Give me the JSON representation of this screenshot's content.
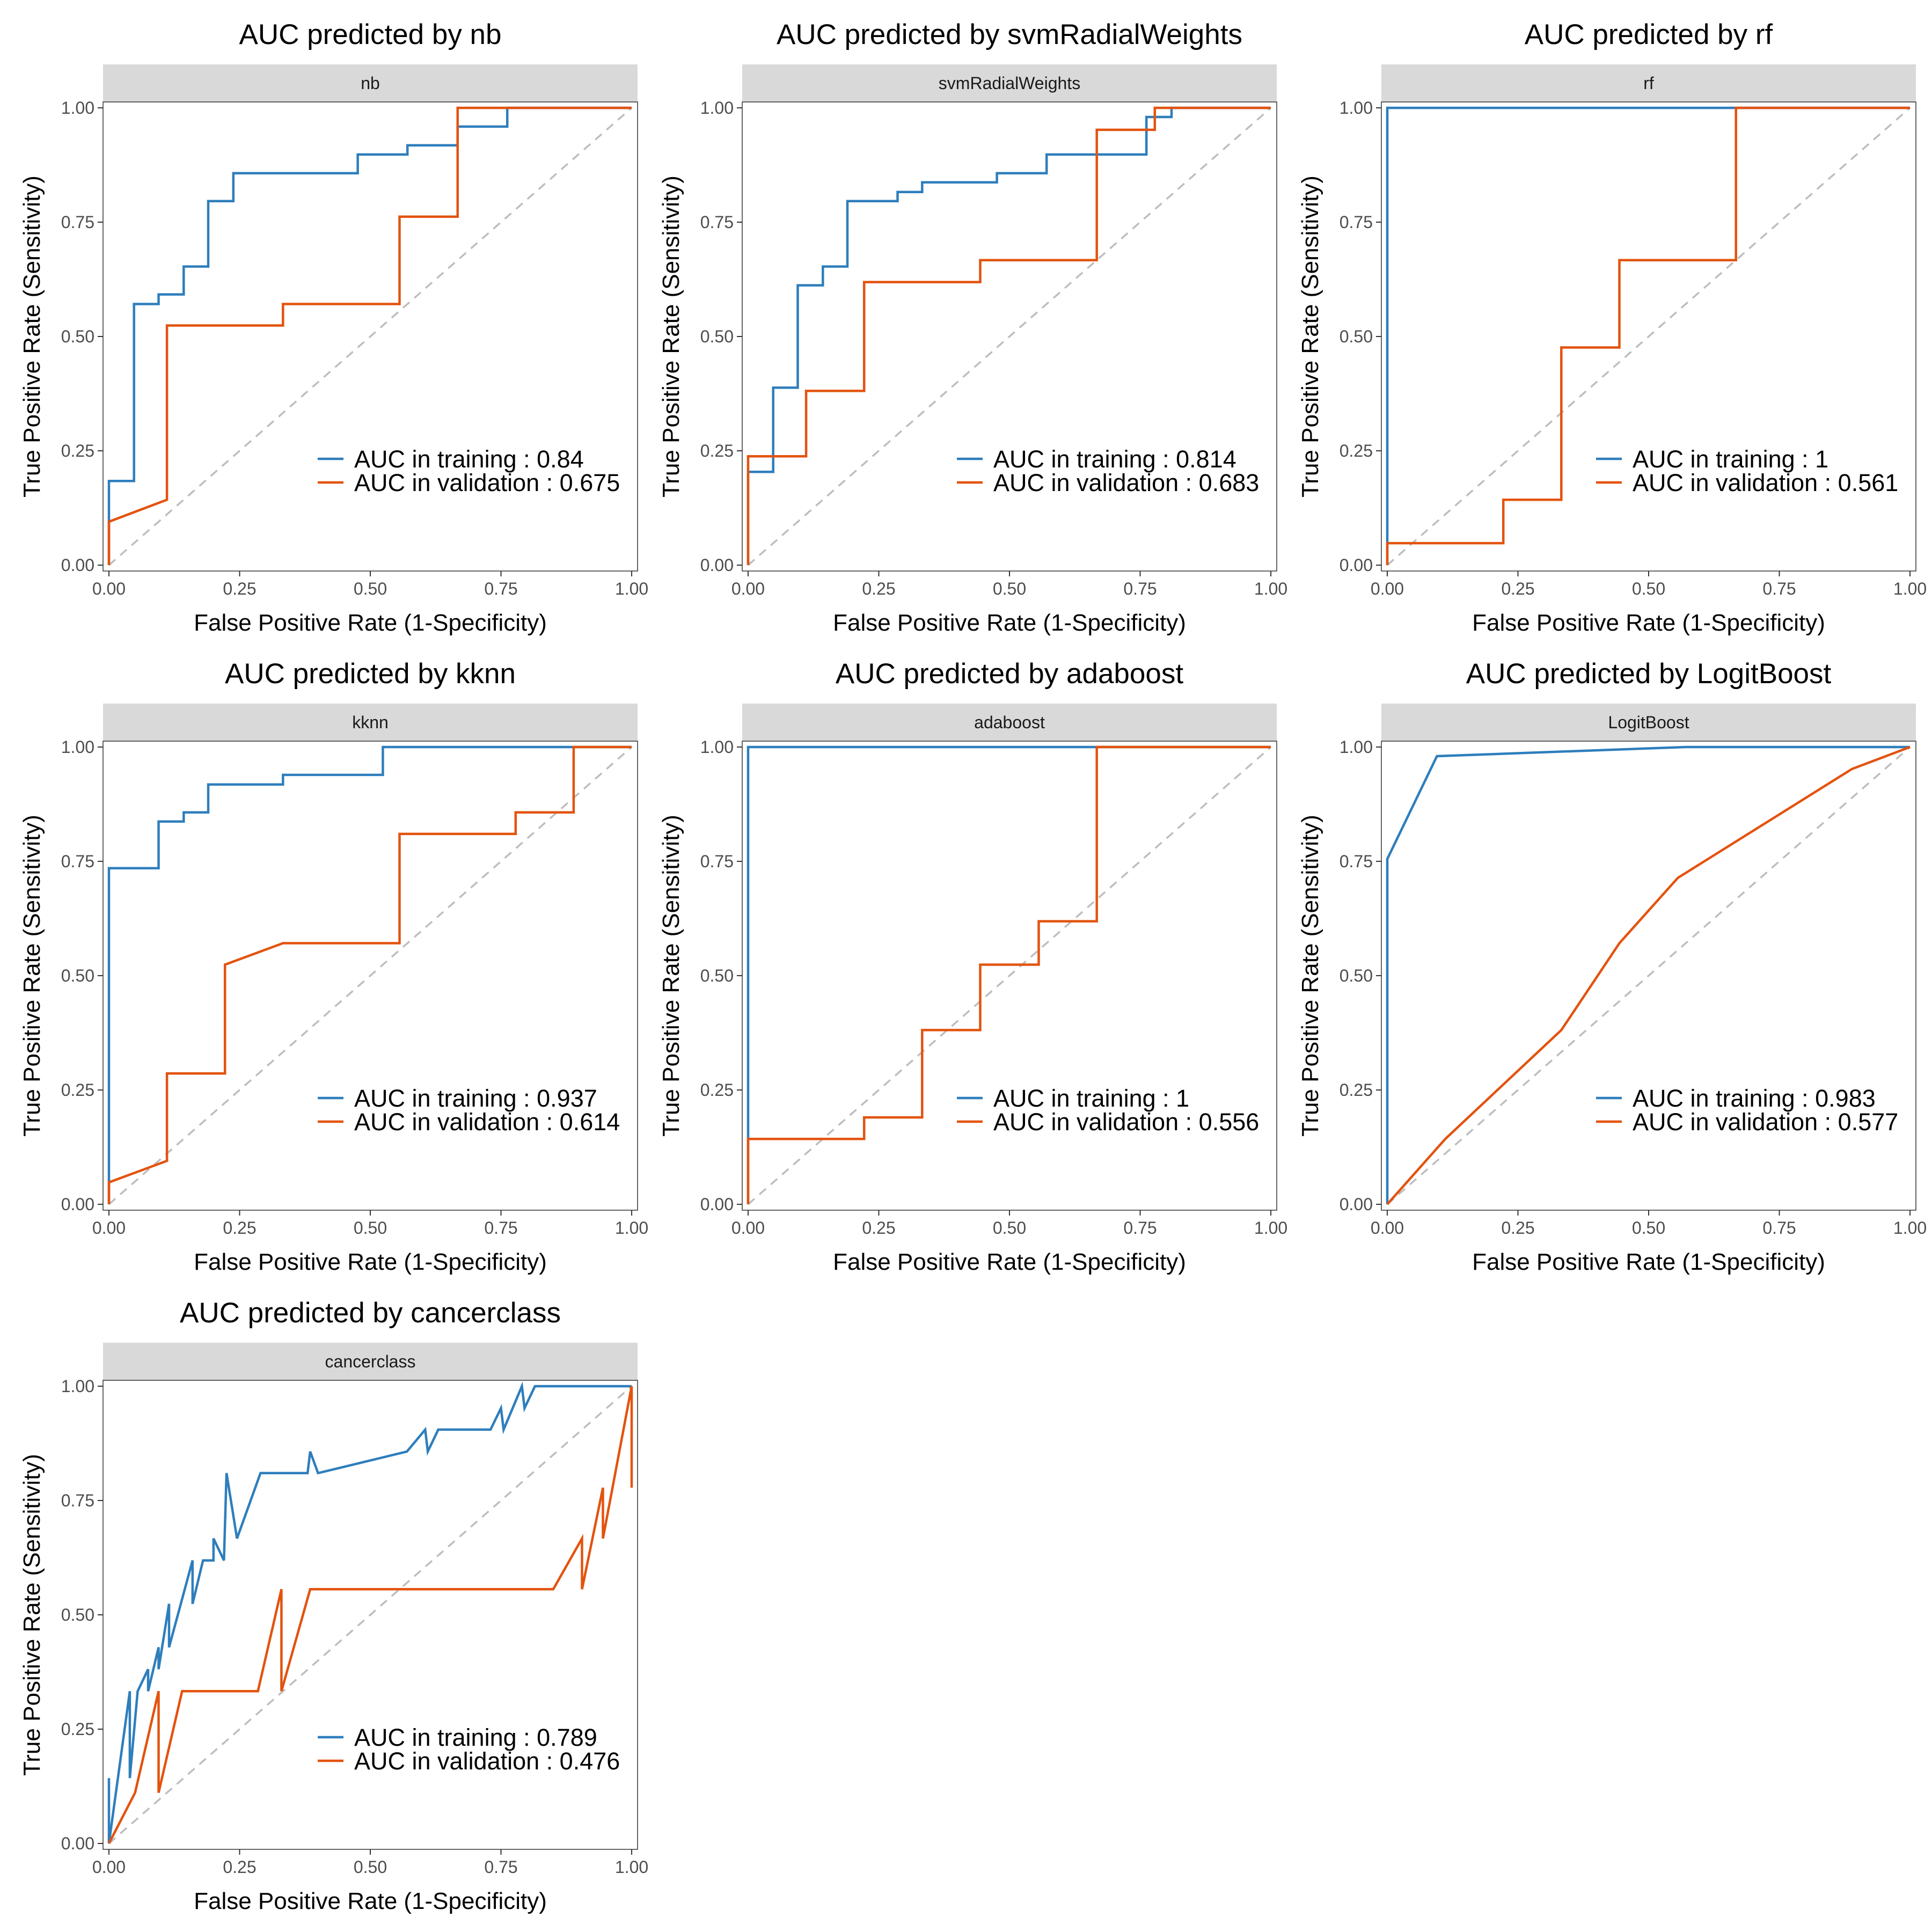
{
  "colors": {
    "training": "#2e7ebc",
    "validation": "#e3530f",
    "diagonal": "#bebebe",
    "strip": "#d9d9d9"
  },
  "chart_data": [
    {
      "type": "line",
      "title": "AUC predicted by nb",
      "strip": "nb",
      "xlabel": "False Positive Rate (1-Specificity)",
      "ylabel": "True Positive Rate (Sensitivity)",
      "xlim": [
        0,
        1
      ],
      "ylim": [
        0,
        1
      ],
      "xticks": [
        "0.00",
        "0.25",
        "0.50",
        "0.75",
        "1.00"
      ],
      "yticks": [
        "0.00",
        "0.25",
        "0.50",
        "0.75",
        "1.00"
      ],
      "grid": false,
      "legend_position": "bottom-right",
      "series": [
        {
          "name": "AUC in training : 0.84",
          "role": "training",
          "x": [
            0,
            0,
            0.048,
            0.048,
            0.095,
            0.095,
            0.143,
            0.143,
            0.19,
            0.19,
            0.238,
            0.238,
            0.476,
            0.476,
            0.571,
            0.571,
            0.667,
            0.667,
            0.762,
            0.762,
            1
          ],
          "y": [
            0,
            0.184,
            0.184,
            0.571,
            0.571,
            0.592,
            0.592,
            0.653,
            0.653,
            0.796,
            0.796,
            0.857,
            0.857,
            0.898,
            0.898,
            0.918,
            0.918,
            0.959,
            0.959,
            1,
            1
          ]
        },
        {
          "name": "AUC in validation : 0.675",
          "role": "validation",
          "x": [
            0,
            0,
            0.111,
            0.111,
            0.333,
            0.333,
            0.556,
            0.556,
            0.667,
            0.667,
            1
          ],
          "y": [
            0,
            0.095,
            0.143,
            0.524,
            0.524,
            0.571,
            0.571,
            0.762,
            0.762,
            1,
            1
          ]
        }
      ]
    },
    {
      "type": "line",
      "title": "AUC predicted by svmRadialWeights",
      "strip": "svmRadialWeights",
      "xlabel": "False Positive Rate (1-Specificity)",
      "ylabel": "True Positive Rate (Sensitivity)",
      "xlim": [
        0,
        1
      ],
      "ylim": [
        0,
        1
      ],
      "xticks": [
        "0.00",
        "0.25",
        "0.50",
        "0.75",
        "1.00"
      ],
      "yticks": [
        "0.00",
        "0.25",
        "0.50",
        "0.75",
        "1.00"
      ],
      "grid": false,
      "legend_position": "bottom-right",
      "series": [
        {
          "name": "AUC in training : 0.814",
          "role": "training",
          "x": [
            0,
            0,
            0.048,
            0.048,
            0.095,
            0.095,
            0.143,
            0.143,
            0.19,
            0.19,
            0.286,
            0.286,
            0.333,
            0.333,
            0.476,
            0.476,
            0.571,
            0.571,
            0.762,
            0.762,
            0.81,
            0.81,
            1
          ],
          "y": [
            0,
            0.204,
            0.204,
            0.388,
            0.388,
            0.612,
            0.612,
            0.653,
            0.653,
            0.796,
            0.796,
            0.816,
            0.816,
            0.837,
            0.837,
            0.857,
            0.857,
            0.898,
            0.898,
            0.98,
            0.98,
            1,
            1
          ]
        },
        {
          "name": "AUC in validation : 0.683",
          "role": "validation",
          "x": [
            0,
            0,
            0.111,
            0.111,
            0.222,
            0.222,
            0.444,
            0.444,
            0.667,
            0.667,
            0.778,
            0.778,
            1
          ],
          "y": [
            0,
            0.238,
            0.238,
            0.381,
            0.381,
            0.619,
            0.619,
            0.667,
            0.667,
            0.952,
            0.952,
            1,
            1
          ]
        }
      ]
    },
    {
      "type": "line",
      "title": "AUC predicted by rf",
      "strip": "rf",
      "xlabel": "False Positive Rate (1-Specificity)",
      "ylabel": "True Positive Rate (Sensitivity)",
      "xlim": [
        0,
        1
      ],
      "ylim": [
        0,
        1
      ],
      "xticks": [
        "0.00",
        "0.25",
        "0.50",
        "0.75",
        "1.00"
      ],
      "yticks": [
        "0.00",
        "0.25",
        "0.50",
        "0.75",
        "1.00"
      ],
      "grid": false,
      "legend_position": "bottom-right",
      "series": [
        {
          "name": "AUC in training : 1",
          "role": "training",
          "x": [
            0,
            0,
            1
          ],
          "y": [
            0,
            1,
            1
          ]
        },
        {
          "name": "AUC in validation : 0.561",
          "role": "validation",
          "x": [
            0,
            0,
            0.222,
            0.222,
            0.333,
            0.333,
            0.444,
            0.444,
            0.667,
            0.667,
            1
          ],
          "y": [
            0,
            0.048,
            0.048,
            0.143,
            0.143,
            0.476,
            0.476,
            0.667,
            0.667,
            1,
            1
          ]
        }
      ]
    },
    {
      "type": "line",
      "title": "AUC predicted by kknn",
      "strip": "kknn",
      "xlabel": "False Positive Rate (1-Specificity)",
      "ylabel": "True Positive Rate (Sensitivity)",
      "xlim": [
        0,
        1
      ],
      "ylim": [
        0,
        1
      ],
      "xticks": [
        "0.00",
        "0.25",
        "0.50",
        "0.75",
        "1.00"
      ],
      "yticks": [
        "0.00",
        "0.25",
        "0.50",
        "0.75",
        "1.00"
      ],
      "grid": false,
      "legend_position": "bottom-right",
      "series": [
        {
          "name": "AUC in training : 0.937",
          "role": "training",
          "x": [
            0,
            0,
            0.095,
            0.095,
            0.143,
            0.143,
            0.19,
            0.19,
            0.333,
            0.333,
            0.524,
            0.524,
            1
          ],
          "y": [
            0,
            0.735,
            0.735,
            0.837,
            0.837,
            0.857,
            0.857,
            0.918,
            0.918,
            0.939,
            0.939,
            1,
            1
          ]
        },
        {
          "name": "AUC in validation : 0.614",
          "role": "validation",
          "x": [
            0,
            0,
            0.111,
            0.111,
            0.222,
            0.222,
            0.333,
            0.556,
            0.556,
            0.778,
            0.778,
            0.889,
            0.889,
            1
          ],
          "y": [
            0,
            0.048,
            0.095,
            0.286,
            0.286,
            0.524,
            0.571,
            0.571,
            0.81,
            0.81,
            0.857,
            0.857,
            1,
            1
          ]
        }
      ]
    },
    {
      "type": "line",
      "title": "AUC predicted by adaboost",
      "strip": "adaboost",
      "xlabel": "False Positive Rate (1-Specificity)",
      "ylabel": "True Positive Rate (Sensitivity)",
      "xlim": [
        0,
        1
      ],
      "ylim": [
        0,
        1
      ],
      "xticks": [
        "0.00",
        "0.25",
        "0.50",
        "0.75",
        "1.00"
      ],
      "yticks": [
        "0.00",
        "0.25",
        "0.50",
        "0.75",
        "1.00"
      ],
      "grid": false,
      "legend_position": "bottom-right",
      "series": [
        {
          "name": "AUC in training : 1",
          "role": "training",
          "x": [
            0,
            0,
            1
          ],
          "y": [
            0,
            1,
            1
          ]
        },
        {
          "name": "AUC in validation : 0.556",
          "role": "validation",
          "x": [
            0,
            0,
            0.222,
            0.222,
            0.333,
            0.333,
            0.444,
            0.444,
            0.556,
            0.556,
            0.667,
            0.667,
            1
          ],
          "y": [
            0,
            0.143,
            0.143,
            0.19,
            0.19,
            0.381,
            0.381,
            0.524,
            0.524,
            0.619,
            0.619,
            1,
            1
          ]
        }
      ]
    },
    {
      "type": "line",
      "title": "AUC predicted by LogitBoost",
      "strip": "LogitBoost",
      "xlabel": "False Positive Rate (1-Specificity)",
      "ylabel": "True Positive Rate (Sensitivity)",
      "xlim": [
        0,
        1
      ],
      "ylim": [
        0,
        1
      ],
      "xticks": [
        "0.00",
        "0.25",
        "0.50",
        "0.75",
        "1.00"
      ],
      "yticks": [
        "0.00",
        "0.25",
        "0.50",
        "0.75",
        "1.00"
      ],
      "grid": false,
      "legend_position": "bottom-right",
      "series": [
        {
          "name": "AUC in training : 0.983",
          "role": "training",
          "x": [
            0,
            0,
            0.095,
            0.571,
            1
          ],
          "y": [
            0,
            0.755,
            0.98,
            1,
            1
          ]
        },
        {
          "name": "AUC in validation : 0.577",
          "role": "validation",
          "x": [
            0,
            0.111,
            0.333,
            0.444,
            0.556,
            0.889,
            1
          ],
          "y": [
            0,
            0.143,
            0.381,
            0.571,
            0.714,
            0.952,
            1
          ]
        }
      ]
    },
    {
      "type": "line",
      "title": "AUC predicted by cancerclass",
      "strip": "cancerclass",
      "xlabel": "False Positive Rate (1-Specificity)",
      "ylabel": "True Positive Rate (Sensitivity)",
      "xlim": [
        0,
        1
      ],
      "ylim": [
        0,
        1
      ],
      "xticks": [
        "0.00",
        "0.25",
        "0.50",
        "0.75",
        "1.00"
      ],
      "yticks": [
        "0.00",
        "0.25",
        "0.50",
        "0.75",
        "1.00"
      ],
      "grid": false,
      "legend_position": "bottom-right",
      "series": [
        {
          "name": "AUC in training : 0.789",
          "role": "training",
          "x": [
            0,
            0,
            0.0,
            0.04,
            0.04,
            0.055,
            0.075,
            0.075,
            0.095,
            0.095,
            0.115,
            0.115,
            0.16,
            0.16,
            0.18,
            0.2,
            0.2,
            0.22,
            0.225,
            0.245,
            0.29,
            0.38,
            0.385,
            0.4,
            0.57,
            0.605,
            0.61,
            0.63,
            0.73,
            0.75,
            0.755,
            0.79,
            0.795,
            0.815,
            1
          ],
          "y": [
            0,
            0.143,
            0.0,
            0.333,
            0.143,
            0.333,
            0.381,
            0.333,
            0.429,
            0.381,
            0.524,
            0.429,
            0.619,
            0.524,
            0.619,
            0.619,
            0.667,
            0.619,
            0.81,
            0.667,
            0.81,
            0.81,
            0.857,
            0.81,
            0.857,
            0.905,
            0.857,
            0.905,
            0.905,
            0.952,
            0.905,
            1,
            0.952,
            1,
            1
          ]
        },
        {
          "name": "AUC in validation : 0.476",
          "role": "validation",
          "x": [
            0,
            0.05,
            0.095,
            0.095,
            0.14,
            0.285,
            0.33,
            0.33,
            0.385,
            0.85,
            0.905,
            0.905,
            0.945,
            0.945,
            1,
            1
          ],
          "y": [
            0,
            0.111,
            0.333,
            0.111,
            0.333,
            0.333,
            0.556,
            0.333,
            0.556,
            0.556,
            0.667,
            0.556,
            0.778,
            0.667,
            1,
            0.778
          ]
        }
      ]
    }
  ]
}
